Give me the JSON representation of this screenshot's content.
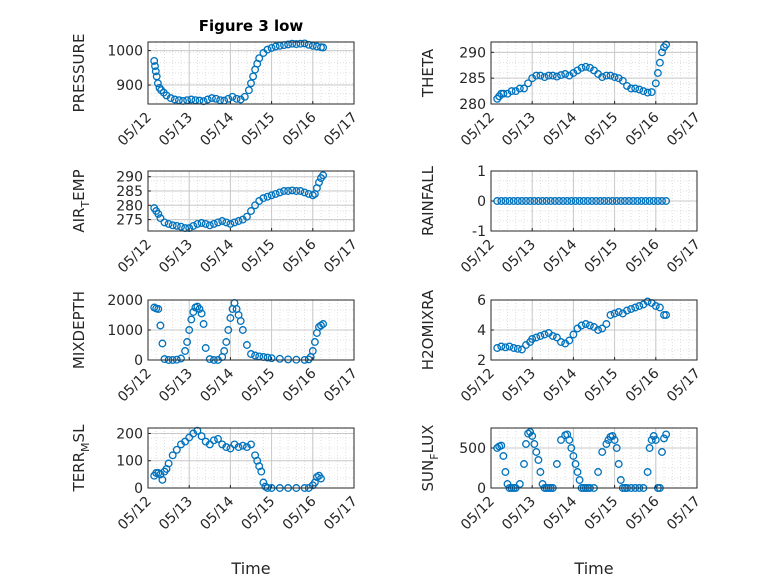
{
  "figure": {
    "title": "Figure 3 low",
    "marker_color": "#0072BD",
    "grid": true,
    "x_ticks": [
      "05/12",
      "05/13",
      "05/14",
      "05/15",
      "05/16",
      "05/17"
    ],
    "x_label": "Time"
  },
  "chart_data": [
    {
      "type": "scatter",
      "ylabel": "PRESSURE",
      "yticks": [
        "900",
        "1000"
      ],
      "ytick_values": [
        900,
        1000
      ],
      "ylim": [
        845,
        1025
      ],
      "xlim": [
        0,
        5
      ],
      "x": [
        0.15,
        0.17,
        0.19,
        0.21,
        0.24,
        0.28,
        0.32,
        0.38,
        0.45,
        0.55,
        0.65,
        0.75,
        0.85,
        0.95,
        1.05,
        1.15,
        1.25,
        1.35,
        1.45,
        1.55,
        1.65,
        1.75,
        1.85,
        1.95,
        2.05,
        2.15,
        2.25,
        2.35,
        2.45,
        2.5,
        2.55,
        2.6,
        2.65,
        2.7,
        2.8,
        2.9,
        3.0,
        3.1,
        3.2,
        3.3,
        3.4,
        3.5,
        3.6,
        3.7,
        3.8,
        3.9,
        4.0,
        4.1,
        4.2,
        4.25
      ],
      "y": [
        970,
        955,
        940,
        925,
        905,
        892,
        885,
        878,
        870,
        862,
        858,
        856,
        854,
        856,
        858,
        856,
        855,
        853,
        858,
        862,
        860,
        856,
        855,
        860,
        866,
        860,
        858,
        866,
        885,
        905,
        925,
        945,
        962,
        978,
        993,
        1003,
        1008,
        1012,
        1014,
        1016,
        1018,
        1020,
        1019,
        1020,
        1021,
        1017,
        1014,
        1012,
        1010,
        1009
      ]
    },
    {
      "type": "scatter",
      "ylabel": "THETA",
      "yticks": [
        "280",
        "285",
        "290"
      ],
      "ytick_values": [
        280,
        285,
        290
      ],
      "ylim": [
        280,
        292
      ],
      "xlim": [
        0,
        5
      ],
      "x": [
        0.15,
        0.2,
        0.25,
        0.3,
        0.4,
        0.5,
        0.6,
        0.7,
        0.8,
        0.9,
        1.0,
        1.1,
        1.2,
        1.3,
        1.4,
        1.5,
        1.6,
        1.7,
        1.8,
        1.9,
        2.0,
        2.1,
        2.2,
        2.3,
        2.4,
        2.5,
        2.6,
        2.7,
        2.8,
        2.9,
        3.0,
        3.1,
        3.2,
        3.3,
        3.4,
        3.5,
        3.6,
        3.7,
        3.8,
        3.9,
        4.0,
        4.05,
        4.1,
        4.15,
        4.2,
        4.25
      ],
      "y": [
        281,
        281.5,
        282,
        282,
        282,
        282.5,
        282.5,
        283,
        283,
        284,
        285,
        285.5,
        285.5,
        285.2,
        285.5,
        285.5,
        285.3,
        285.6,
        285.8,
        285.5,
        286,
        286.5,
        287,
        287.2,
        287,
        286.5,
        285.8,
        285.2,
        285.5,
        285.5,
        285.2,
        285,
        284.5,
        283.5,
        283,
        283,
        282.8,
        282.5,
        282.2,
        282.3,
        284,
        286,
        288,
        290,
        291,
        291.5
      ]
    },
    {
      "type": "scatter",
      "ylabel": "AIR_TEMP",
      "yticks": [
        "275",
        "280",
        "285",
        "290"
      ],
      "ytick_values": [
        275,
        280,
        285,
        290
      ],
      "ylim": [
        271,
        292
      ],
      "xlim": [
        0,
        5
      ],
      "x": [
        0.15,
        0.2,
        0.25,
        0.3,
        0.4,
        0.5,
        0.6,
        0.7,
        0.8,
        0.9,
        1.0,
        1.1,
        1.2,
        1.3,
        1.4,
        1.5,
        1.6,
        1.7,
        1.8,
        1.9,
        2.0,
        2.1,
        2.2,
        2.3,
        2.4,
        2.5,
        2.6,
        2.7,
        2.8,
        2.9,
        3.0,
        3.1,
        3.2,
        3.3,
        3.4,
        3.5,
        3.6,
        3.7,
        3.8,
        3.9,
        4.0,
        4.05,
        4.1,
        4.15,
        4.2,
        4.25
      ],
      "y": [
        279,
        278,
        277,
        275.5,
        274,
        273.5,
        273,
        272.8,
        272.5,
        272,
        272,
        272.8,
        273.5,
        273.8,
        273.5,
        273,
        273.5,
        274,
        274.5,
        274,
        273.5,
        274,
        274.5,
        275,
        276,
        278,
        280,
        281.5,
        282.5,
        283,
        283.5,
        284,
        284.5,
        285,
        285,
        285.2,
        285,
        285,
        284.5,
        284,
        283.5,
        284,
        286,
        288,
        289.5,
        290.5
      ]
    },
    {
      "type": "scatter",
      "ylabel": "RAINFALL",
      "yticks": [
        "-1",
        "0",
        "1"
      ],
      "ytick_values": [
        -1,
        0,
        1
      ],
      "ylim": [
        -1,
        1
      ],
      "xlim": [
        0,
        5
      ],
      "x": [
        0.15,
        0.25,
        0.35,
        0.45,
        0.55,
        0.65,
        0.75,
        0.85,
        0.95,
        1.05,
        1.15,
        1.25,
        1.35,
        1.45,
        1.55,
        1.65,
        1.75,
        1.85,
        1.95,
        2.05,
        2.15,
        2.25,
        2.35,
        2.45,
        2.55,
        2.65,
        2.75,
        2.85,
        2.95,
        3.05,
        3.15,
        3.25,
        3.35,
        3.45,
        3.55,
        3.65,
        3.75,
        3.85,
        3.95,
        4.05,
        4.15,
        4.25
      ],
      "y": [
        0,
        0,
        0,
        0,
        0,
        0,
        0,
        0,
        0,
        0,
        0,
        0,
        0,
        0,
        0,
        0,
        0,
        0,
        0,
        0,
        0,
        0,
        0,
        0,
        0,
        0,
        0,
        0,
        0,
        0,
        0,
        0,
        0,
        0,
        0,
        0,
        0,
        0,
        0,
        0,
        0,
        0
      ]
    },
    {
      "type": "scatter",
      "ylabel": "MIXDEPTH",
      "yticks": [
        "0",
        "1000",
        "2000"
      ],
      "ytick_values": [
        0,
        1000,
        2000
      ],
      "ylim": [
        0,
        2000
      ],
      "xlim": [
        0,
        5
      ],
      "x": [
        0.15,
        0.2,
        0.25,
        0.3,
        0.35,
        0.4,
        0.5,
        0.6,
        0.7,
        0.8,
        0.9,
        0.95,
        1.0,
        1.05,
        1.1,
        1.15,
        1.2,
        1.25,
        1.3,
        1.35,
        1.4,
        1.5,
        1.6,
        1.7,
        1.8,
        1.85,
        1.9,
        1.95,
        2.0,
        2.05,
        2.1,
        2.15,
        2.2,
        2.25,
        2.3,
        2.4,
        2.5,
        2.6,
        2.7,
        2.8,
        2.9,
        3.0,
        3.2,
        3.4,
        3.6,
        3.8,
        3.9,
        3.95,
        4.0,
        4.05,
        4.1,
        4.15,
        4.2,
        4.25
      ],
      "y": [
        1750,
        1720,
        1700,
        1150,
        550,
        30,
        0,
        0,
        10,
        50,
        300,
        600,
        1000,
        1350,
        1600,
        1750,
        1780,
        1700,
        1550,
        1200,
        400,
        30,
        0,
        0,
        100,
        300,
        600,
        1000,
        1400,
        1700,
        1900,
        1700,
        1500,
        1300,
        1000,
        500,
        200,
        150,
        120,
        100,
        80,
        60,
        40,
        20,
        10,
        5,
        20,
        100,
        300,
        600,
        900,
        1100,
        1150,
        1200
      ]
    },
    {
      "type": "scatter",
      "ylabel": "H2OMIXRA",
      "yticks": [
        "2",
        "4",
        "6"
      ],
      "ytick_values": [
        2,
        4,
        6
      ],
      "ylim": [
        2,
        6
      ],
      "xlim": [
        0,
        5
      ],
      "x": [
        0.15,
        0.25,
        0.35,
        0.45,
        0.55,
        0.65,
        0.75,
        0.85,
        0.95,
        1.0,
        1.1,
        1.2,
        1.3,
        1.4,
        1.5,
        1.6,
        1.7,
        1.8,
        1.9,
        2.0,
        2.1,
        2.2,
        2.3,
        2.4,
        2.5,
        2.6,
        2.7,
        2.8,
        2.9,
        3.0,
        3.1,
        3.2,
        3.3,
        3.4,
        3.5,
        3.6,
        3.7,
        3.8,
        3.9,
        4.0,
        4.1,
        4.2,
        4.25
      ],
      "y": [
        2.8,
        2.9,
        2.85,
        2.9,
        2.8,
        2.75,
        2.7,
        3.0,
        3.2,
        3.4,
        3.5,
        3.6,
        3.7,
        3.8,
        3.6,
        3.5,
        3.2,
        3.1,
        3.3,
        3.7,
        4.1,
        4.3,
        4.4,
        4.3,
        4.2,
        4.0,
        4.1,
        4.4,
        5.0,
        5.1,
        5.2,
        5.1,
        5.3,
        5.4,
        5.5,
        5.6,
        5.7,
        5.9,
        5.8,
        5.6,
        5.5,
        5.0,
        5.0
      ]
    },
    {
      "type": "scatter",
      "ylabel": "TERR_MSL",
      "yticks": [
        "0",
        "100",
        "200"
      ],
      "ytick_values": [
        0,
        100,
        200
      ],
      "ylim": [
        0,
        220
      ],
      "xlim": [
        0,
        5
      ],
      "x": [
        0.15,
        0.2,
        0.25,
        0.3,
        0.35,
        0.4,
        0.45,
        0.5,
        0.6,
        0.7,
        0.8,
        0.9,
        1.0,
        1.1,
        1.2,
        1.3,
        1.4,
        1.5,
        1.6,
        1.7,
        1.8,
        1.9,
        2.0,
        2.1,
        2.2,
        2.3,
        2.4,
        2.5,
        2.6,
        2.65,
        2.7,
        2.75,
        2.8,
        2.85,
        2.9,
        3.0,
        3.2,
        3.4,
        3.6,
        3.8,
        3.9,
        4.0,
        4.05,
        4.1,
        4.15,
        4.2
      ],
      "y": [
        45,
        55,
        55,
        50,
        30,
        60,
        70,
        90,
        120,
        140,
        160,
        170,
        185,
        200,
        210,
        190,
        170,
        160,
        175,
        180,
        160,
        150,
        145,
        160,
        150,
        155,
        150,
        160,
        120,
        100,
        80,
        60,
        20,
        5,
        0,
        0,
        0,
        0,
        0,
        0,
        0,
        10,
        20,
        40,
        45,
        35
      ]
    },
    {
      "type": "scatter",
      "ylabel": "SUN_FLUX",
      "yticks": [
        "0",
        "500"
      ],
      "ytick_values": [
        0,
        500
      ],
      "ylim": [
        0,
        750
      ],
      "xlim": [
        0,
        5
      ],
      "x": [
        0.15,
        0.2,
        0.25,
        0.3,
        0.35,
        0.4,
        0.45,
        0.5,
        0.55,
        0.6,
        0.7,
        0.8,
        0.85,
        0.9,
        0.95,
        1.0,
        1.05,
        1.1,
        1.15,
        1.2,
        1.25,
        1.3,
        1.35,
        1.4,
        1.45,
        1.5,
        1.6,
        1.7,
        1.8,
        1.85,
        1.9,
        1.95,
        2.0,
        2.05,
        2.1,
        2.15,
        2.2,
        2.25,
        2.3,
        2.35,
        2.4,
        2.5,
        2.6,
        2.7,
        2.8,
        2.85,
        2.9,
        2.95,
        3.0,
        3.05,
        3.1,
        3.15,
        3.2,
        3.25,
        3.3,
        3.4,
        3.5,
        3.6,
        3.7,
        3.8,
        3.85,
        3.9,
        3.95,
        4.0,
        4.05,
        4.1,
        4.15,
        4.2,
        4.25
      ],
      "y": [
        500,
        520,
        530,
        400,
        200,
        50,
        0,
        0,
        0,
        0,
        50,
        300,
        550,
        680,
        700,
        650,
        550,
        450,
        350,
        200,
        50,
        0,
        0,
        0,
        0,
        0,
        300,
        600,
        660,
        670,
        600,
        500,
        400,
        300,
        200,
        100,
        0,
        0,
        0,
        0,
        0,
        0,
        200,
        450,
        550,
        600,
        640,
        650,
        600,
        500,
        300,
        100,
        0,
        0,
        0,
        0,
        0,
        0,
        0,
        200,
        500,
        600,
        650,
        600,
        0,
        0,
        450,
        620,
        670
      ]
    }
  ]
}
